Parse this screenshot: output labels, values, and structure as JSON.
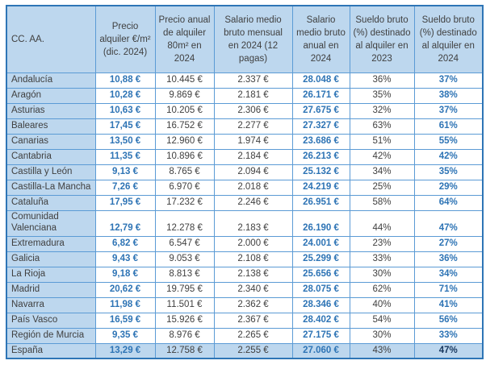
{
  "colors": {
    "header_bg": "#BDD7EE",
    "border_inner": "#5B9BD5",
    "border_outer": "#2E75B6",
    "accent_text": "#2E74B5",
    "dark_text": "#404040",
    "total_pct_text": "#17375E"
  },
  "chart_data": {
    "type": "table",
    "title": "",
    "columns": [
      "CC. AA.",
      "Precio alquiler €/m² (dic. 2024)",
      "Precio anual de alquiler 80m² en 2024",
      "Salario medio bruto mensual en 2024 (12 pagas)",
      "Salario medio bruto anual en 2024",
      "Sueldo bruto (%) destinado al alquiler en 2023",
      "Sueldo bruto (%) destinado al alquiler en 2024"
    ],
    "rows": [
      {
        "region": "Andalucía",
        "values": [
          "10,88 €",
          "10.445 €",
          "2.337 €",
          "28.048 €",
          "36%",
          "37%"
        ]
      },
      {
        "region": "Aragón",
        "values": [
          "10,28 €",
          "9.869 €",
          "2.181 €",
          "26.171 €",
          "35%",
          "38%"
        ]
      },
      {
        "region": "Asturias",
        "values": [
          "10,63 €",
          "10.205 €",
          "2.306 €",
          "27.675 €",
          "32%",
          "37%"
        ]
      },
      {
        "region": "Baleares",
        "values": [
          "17,45 €",
          "16.752 €",
          "2.277 €",
          "27.327 €",
          "63%",
          "61%"
        ]
      },
      {
        "region": "Canarias",
        "values": [
          "13,50 €",
          "12.960 €",
          "1.974 €",
          "23.686 €",
          "51%",
          "55%"
        ]
      },
      {
        "region": "Cantabria",
        "values": [
          "11,35 €",
          "10.896 €",
          "2.184 €",
          "26.213 €",
          "42%",
          "42%"
        ]
      },
      {
        "region": "Castilla y León",
        "values": [
          "9,13 €",
          "8.765 €",
          "2.094 €",
          "25.132 €",
          "34%",
          "35%"
        ]
      },
      {
        "region": "Castilla-La Mancha",
        "values": [
          "7,26 €",
          "6.970 €",
          "2.018 €",
          "24.219 €",
          "25%",
          "29%"
        ]
      },
      {
        "region": "Cataluña",
        "values": [
          "17,95 €",
          "17.232 €",
          "2.246 €",
          "26.951 €",
          "58%",
          "64%"
        ]
      },
      {
        "region": "Comunidad Valenciana",
        "values": [
          "12,79 €",
          "12.278 €",
          "2.183 €",
          "26.190 €",
          "44%",
          "47%"
        ]
      },
      {
        "region": "Extremadura",
        "values": [
          "6,82 €",
          "6.547 €",
          "2.000 €",
          "24.001 €",
          "23%",
          "27%"
        ]
      },
      {
        "region": "Galicia",
        "values": [
          "9,43 €",
          "9.053 €",
          "2.108 €",
          "25.299 €",
          "33%",
          "36%"
        ]
      },
      {
        "region": "La Rioja",
        "values": [
          "9,18 €",
          "8.813 €",
          "2.138 €",
          "25.656 €",
          "30%",
          "34%"
        ]
      },
      {
        "region": "Madrid",
        "values": [
          "20,62 €",
          "19.795 €",
          "2.340 €",
          "28.075 €",
          "62%",
          "71%"
        ]
      },
      {
        "region": "Navarra",
        "values": [
          "11,98 €",
          "11.501 €",
          "2.362 €",
          "28.346 €",
          "40%",
          "41%"
        ]
      },
      {
        "region": "País Vasco",
        "values": [
          "16,59 €",
          "15.926 €",
          "2.367 €",
          "28.402 €",
          "54%",
          "56%"
        ]
      },
      {
        "region": "Región de Murcia",
        "values": [
          "9,35 €",
          "8.976 €",
          "2.265 €",
          "27.175 €",
          "30%",
          "33%"
        ]
      },
      {
        "region": "España",
        "values": [
          "13,29 €",
          "12.758 €",
          "2.255 €",
          "27.060 €",
          "43%",
          "47%"
        ],
        "is_total": true
      }
    ]
  }
}
